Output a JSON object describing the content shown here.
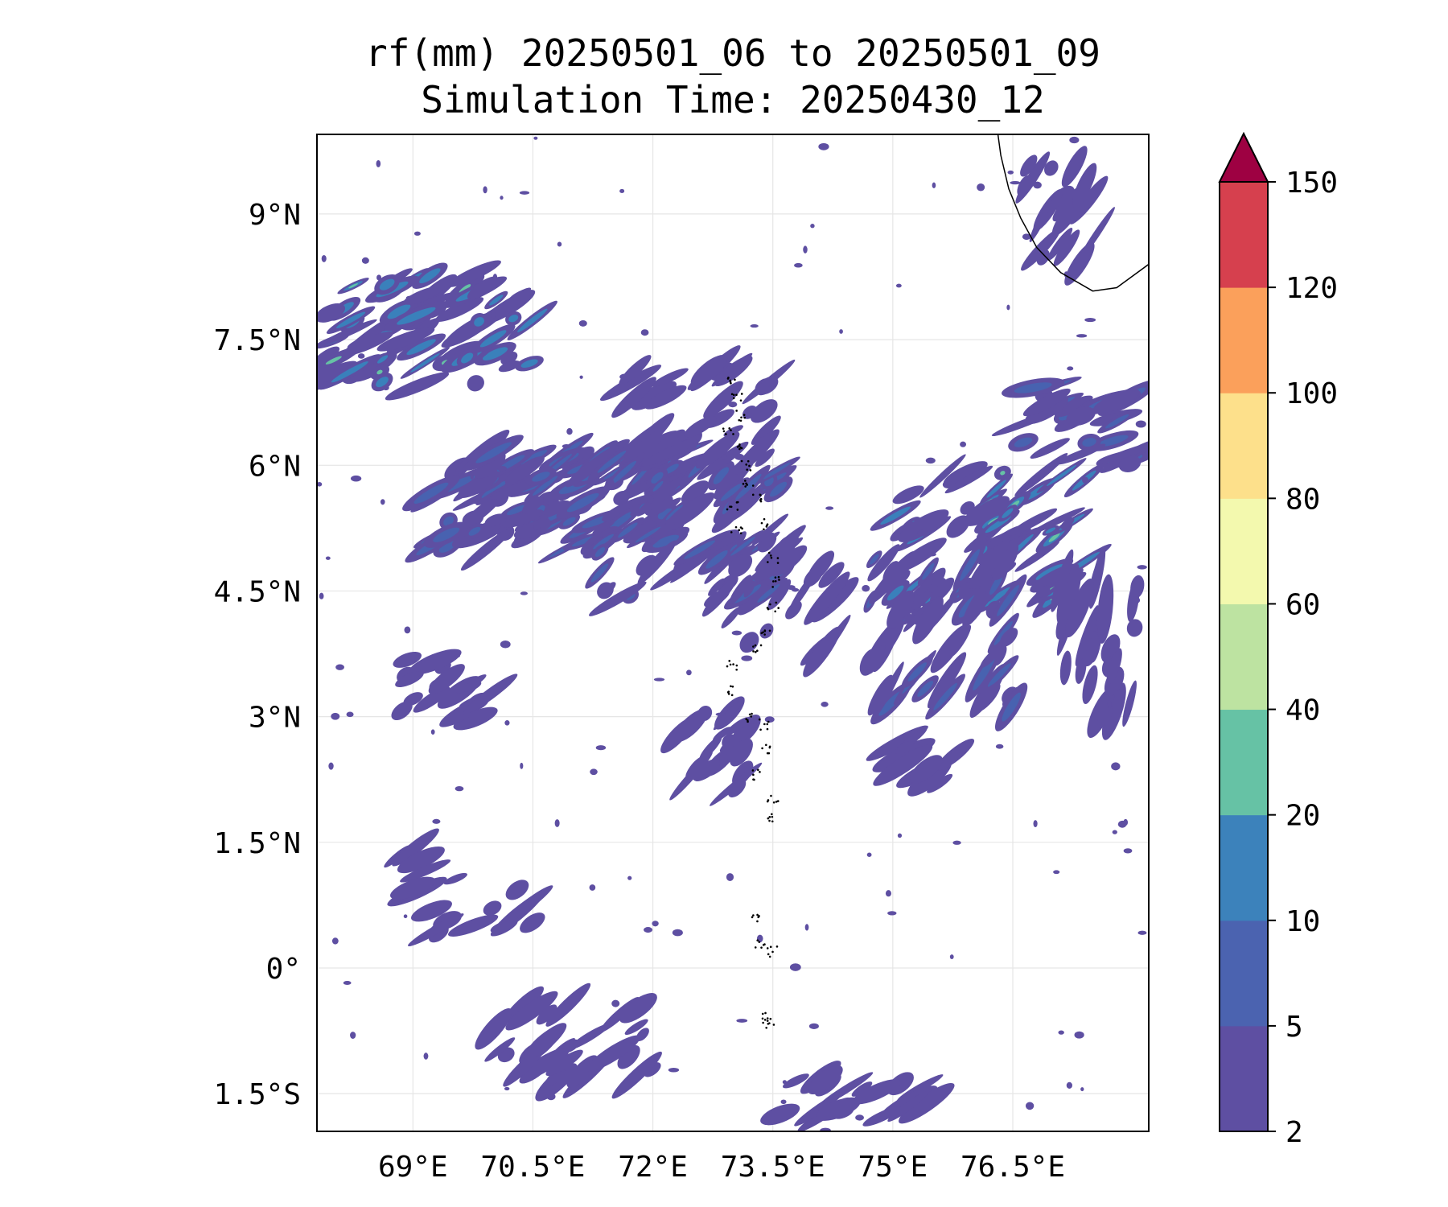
{
  "title": "rf(mm) 20250501_06 to 20250501_09",
  "subtitle": "Simulation Time: 20250430_12",
  "map": {
    "lon_range": [
      67.8,
      78.2
    ],
    "lat_range": [
      -1.95,
      9.95
    ],
    "lon_ticks": [
      {
        "value": 69.0,
        "label": "69°E"
      },
      {
        "value": 70.5,
        "label": "70.5°E"
      },
      {
        "value": 72.0,
        "label": "72°E"
      },
      {
        "value": 73.5,
        "label": "73.5°E"
      },
      {
        "value": 75.0,
        "label": "75°E"
      },
      {
        "value": 76.5,
        "label": "76.5°E"
      }
    ],
    "lat_ticks": [
      {
        "value": 9.0,
        "label": "9°N"
      },
      {
        "value": 7.5,
        "label": "7.5°N"
      },
      {
        "value": 6.0,
        "label": "6°N"
      },
      {
        "value": 4.5,
        "label": "4.5°N"
      },
      {
        "value": 3.0,
        "label": "3°N"
      },
      {
        "value": 1.5,
        "label": "1.5°N"
      },
      {
        "value": 0.0,
        "label": "0°"
      },
      {
        "value": -1.5,
        "label": "1.5°S"
      }
    ],
    "gridlines": true,
    "coastline_color": "#000000",
    "field_colors": {
      "light": "#5e4fa2",
      "mid": "#4862b0",
      "heavy": "#3a80bb",
      "peak": "#66c2a5"
    }
  },
  "colorbar": {
    "levels": [
      {
        "value": 2,
        "label": "2"
      },
      {
        "value": 5,
        "label": "5"
      },
      {
        "value": 10,
        "label": "10"
      },
      {
        "value": 20,
        "label": "20"
      },
      {
        "value": 40,
        "label": "40"
      },
      {
        "value": 60,
        "label": "60"
      },
      {
        "value": 80,
        "label": "80"
      },
      {
        "value": 100,
        "label": "100"
      },
      {
        "value": 120,
        "label": "120"
      },
      {
        "value": 150,
        "label": "150"
      }
    ],
    "colors": [
      "#5e4fa2",
      "#4b63b0",
      "#3c82bb",
      "#66c2a5",
      "#bde3a1",
      "#f3f9ae",
      "#fde08b",
      "#fba05b",
      "#d6404e"
    ],
    "extend_color": "#9e0142",
    "extend": "max"
  }
}
